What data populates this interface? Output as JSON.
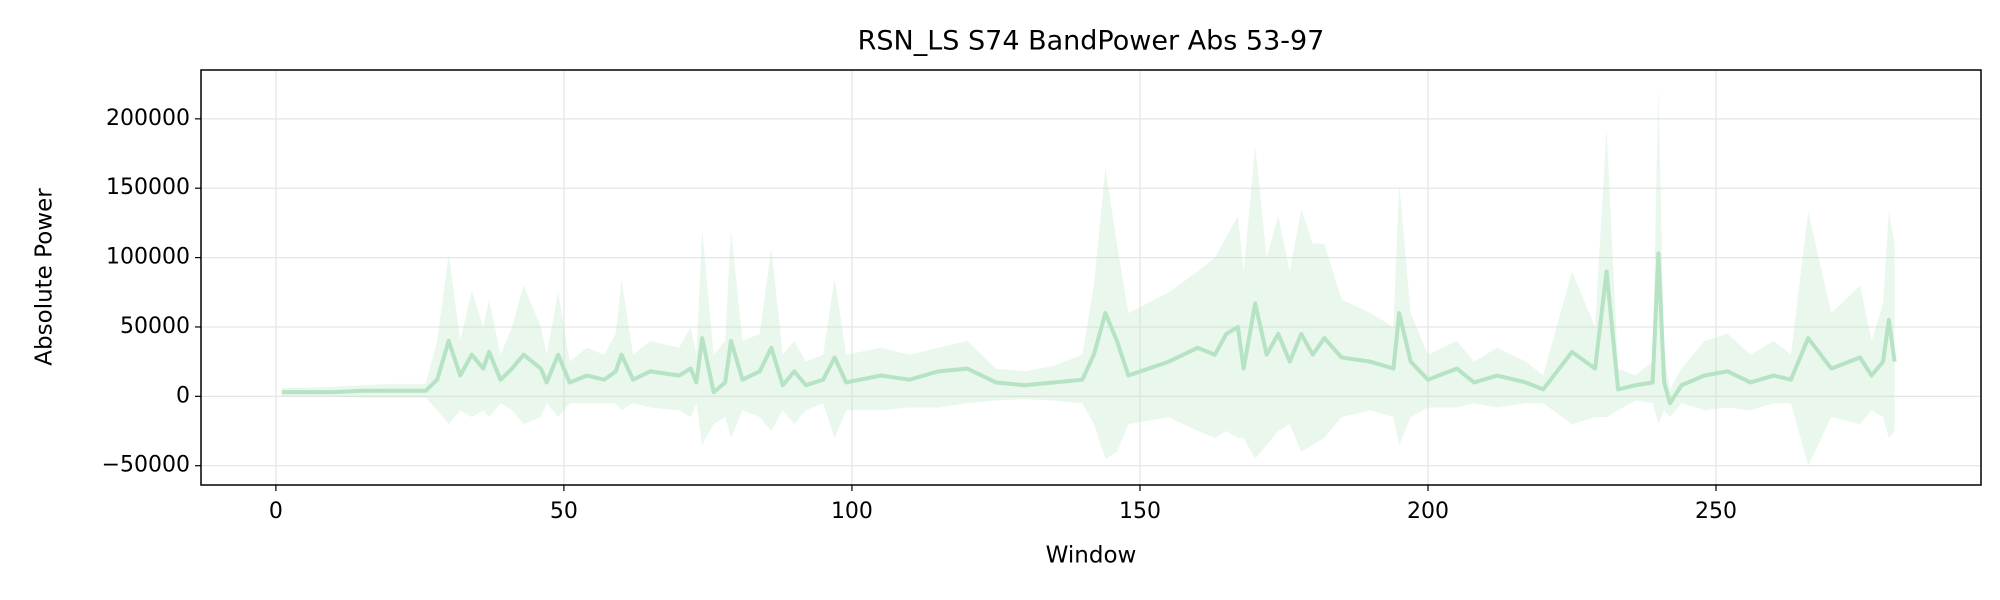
{
  "chart_data": {
    "type": "line",
    "title": "RSN_LS S74 BandPower Abs 53-97",
    "xlabel": "Window",
    "ylabel": "Absolute Power",
    "color": "#b5e3c4",
    "band_color": "#b5e3c4",
    "grid": true,
    "xlim": [
      -13,
      296
    ],
    "ylim": [
      -63900,
      235200
    ],
    "xticks": [
      0,
      50,
      100,
      150,
      200,
      250
    ],
    "yticks": [
      {
        "value": -50000,
        "label": "−50000"
      },
      0,
      50000,
      100000,
      150000,
      200000
    ],
    "x": [
      1,
      5,
      10,
      15,
      20,
      26,
      28,
      30,
      32,
      34,
      36,
      37,
      39,
      41,
      43,
      46,
      47,
      49,
      51,
      54,
      57,
      59,
      60,
      62,
      65,
      70,
      72,
      73,
      74,
      76,
      78,
      79,
      81,
      84,
      86,
      88,
      90,
      92,
      95,
      97,
      99,
      105,
      110,
      115,
      120,
      125,
      130,
      135,
      140,
      142,
      144,
      146,
      148,
      155,
      160,
      163,
      165,
      167,
      168,
      170,
      172,
      174,
      176,
      178,
      180,
      182,
      185,
      190,
      194,
      195,
      197,
      200,
      205,
      208,
      212,
      217,
      220,
      225,
      229,
      231,
      233,
      236,
      239,
      240,
      241,
      242,
      244,
      248,
      252,
      256,
      260,
      263,
      266,
      270,
      275,
      277,
      279,
      280,
      281
    ],
    "values": [
      3000,
      3000,
      3000,
      4000,
      4000,
      4000,
      12000,
      40000,
      15000,
      30000,
      20000,
      32000,
      12000,
      20000,
      30000,
      20000,
      10000,
      30000,
      10000,
      15000,
      12000,
      18000,
      30000,
      12000,
      18000,
      15000,
      20000,
      10000,
      42000,
      3000,
      10000,
      40000,
      12000,
      18000,
      35000,
      8000,
      18000,
      8000,
      12000,
      28000,
      10000,
      15000,
      12000,
      18000,
      20000,
      10000,
      8000,
      10000,
      12000,
      30000,
      60000,
      40000,
      15000,
      25000,
      35000,
      30000,
      45000,
      50000,
      20000,
      67000,
      30000,
      45000,
      25000,
      45000,
      30000,
      42000,
      28000,
      25000,
      20000,
      60000,
      25000,
      12000,
      20000,
      10000,
      15000,
      10000,
      5000,
      32000,
      20000,
      90000,
      5000,
      8000,
      10000,
      103000,
      10000,
      -5000,
      8000,
      15000,
      18000,
      10000,
      15000,
      12000,
      42000,
      20000,
      28000,
      15000,
      25000,
      55000,
      25000
    ],
    "lower": [
      0,
      0,
      0,
      -1000,
      -1000,
      -1000,
      -10000,
      -20000,
      -10000,
      -15000,
      -10000,
      -15000,
      -5000,
      -10000,
      -20000,
      -15000,
      -5000,
      -15000,
      -5000,
      -5000,
      -5000,
      -5000,
      -10000,
      -5000,
      -8000,
      -10000,
      -15000,
      -5000,
      -35000,
      -20000,
      -15000,
      -30000,
      -10000,
      -15000,
      -25000,
      -10000,
      -20000,
      -10000,
      -5000,
      -30000,
      -10000,
      -10000,
      -8000,
      -8000,
      -5000,
      -3000,
      -2000,
      -3000,
      -5000,
      -20000,
      -45000,
      -40000,
      -20000,
      -15000,
      -25000,
      -30000,
      -25000,
      -30000,
      -30000,
      -45000,
      -35000,
      -25000,
      -20000,
      -40000,
      -35000,
      -30000,
      -15000,
      -10000,
      -15000,
      -35000,
      -15000,
      -8000,
      -8000,
      -5000,
      -8000,
      -5000,
      -5000,
      -20000,
      -15000,
      -15000,
      -10000,
      -3000,
      -5000,
      -20000,
      -10000,
      -15000,
      -5000,
      -10000,
      -8000,
      -10000,
      -5000,
      -5000,
      -50000,
      -15000,
      -20000,
      -10000,
      -15000,
      -30000,
      -25000
    ],
    "upper": [
      6000,
      6000,
      7000,
      8000,
      9000,
      9000,
      40000,
      103000,
      40000,
      76000,
      50000,
      70000,
      30000,
      50000,
      80000,
      50000,
      30000,
      75000,
      25000,
      35000,
      30000,
      45000,
      84000,
      30000,
      40000,
      35000,
      50000,
      30000,
      120000,
      30000,
      40000,
      120000,
      40000,
      45000,
      107000,
      30000,
      40000,
      25000,
      30000,
      85000,
      30000,
      35000,
      30000,
      35000,
      40000,
      20000,
      18000,
      22000,
      30000,
      80000,
      165000,
      110000,
      60000,
      75000,
      90000,
      100000,
      115000,
      130000,
      90000,
      180000,
      100000,
      130000,
      90000,
      135000,
      110000,
      110000,
      70000,
      60000,
      50000,
      153000,
      60000,
      30000,
      40000,
      25000,
      35000,
      25000,
      15000,
      90000,
      50000,
      193000,
      20000,
      15000,
      25000,
      222000,
      30000,
      5000,
      20000,
      40000,
      45000,
      30000,
      40000,
      30000,
      133000,
      60000,
      80000,
      40000,
      67000,
      133000,
      110000
    ]
  }
}
